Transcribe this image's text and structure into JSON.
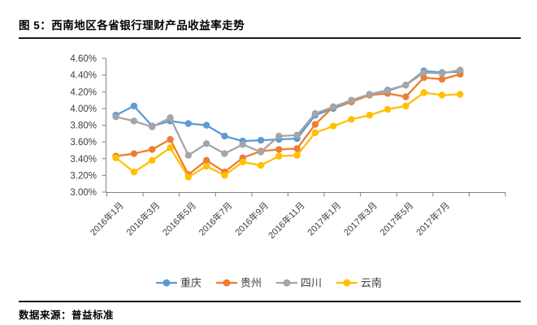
{
  "figure": {
    "title": "图 5：西南地区各省银行理财产品收益率走势",
    "source_label": "数据来源：普益标准"
  },
  "chart_data": {
    "type": "line",
    "title": "西南地区各省银行理财产品收益率走势",
    "categories": [
      "2016年1月",
      "2016年2月",
      "2016年3月",
      "2016年4月",
      "2016年5月",
      "2016年6月",
      "2016年7月",
      "2016年8月",
      "2016年9月",
      "2016年10月",
      "2016年11月",
      "2016年12月",
      "2017年1月",
      "2017年2月",
      "2017年3月",
      "2017年4月",
      "2017年5月",
      "2017年6月",
      "2017年7月",
      "2017年8月"
    ],
    "x_tick_labels": [
      "2016年1月",
      "2016年3月",
      "2016年5月",
      "2016年7月",
      "2016年9月",
      "2016年11月",
      "2017年1月",
      "2017年3月",
      "2017年5月",
      "2017年7月"
    ],
    "x_tick_every": 2,
    "series": [
      {
        "name": "重庆",
        "color": "#5B9BD5",
        "values": [
          3.92,
          4.03,
          3.79,
          3.85,
          3.82,
          3.8,
          3.67,
          3.61,
          3.62,
          3.63,
          3.64,
          3.92,
          4.0,
          4.08,
          4.17,
          4.22,
          4.28,
          4.45,
          4.43,
          4.44
        ]
      },
      {
        "name": "贵州",
        "color": "#ED7D31",
        "values": [
          3.43,
          3.46,
          3.51,
          3.63,
          3.21,
          3.38,
          3.24,
          3.41,
          3.49,
          3.51,
          3.52,
          3.81,
          4.02,
          4.08,
          4.16,
          4.18,
          4.14,
          4.37,
          4.35,
          4.41
        ]
      },
      {
        "name": "四川",
        "color": "#A5A5A5",
        "values": [
          3.9,
          3.85,
          3.78,
          3.89,
          3.44,
          3.58,
          3.46,
          3.57,
          3.48,
          3.67,
          3.68,
          3.94,
          4.02,
          4.1,
          4.17,
          4.21,
          4.28,
          4.43,
          4.42,
          4.46
        ]
      },
      {
        "name": "云南",
        "color": "#FFC000",
        "values": [
          3.41,
          3.24,
          3.38,
          3.53,
          3.18,
          3.31,
          3.2,
          3.36,
          3.32,
          3.43,
          3.44,
          3.71,
          3.79,
          3.87,
          3.92,
          3.99,
          4.03,
          4.19,
          4.16,
          4.17
        ]
      }
    ],
    "y_axis": {
      "min": 3.0,
      "max": 4.6,
      "step": 0.2,
      "tick_labels": [
        "3.00%",
        "3.20%",
        "3.40%",
        "3.60%",
        "3.80%",
        "4.00%",
        "4.20%",
        "4.40%",
        "4.60%"
      ]
    },
    "legend_position": "bottom",
    "legend_entries": [
      "重庆",
      "贵州",
      "四川",
      "云南"
    ],
    "grid": false,
    "axis_color": "#808080",
    "label_color": "#404040"
  }
}
